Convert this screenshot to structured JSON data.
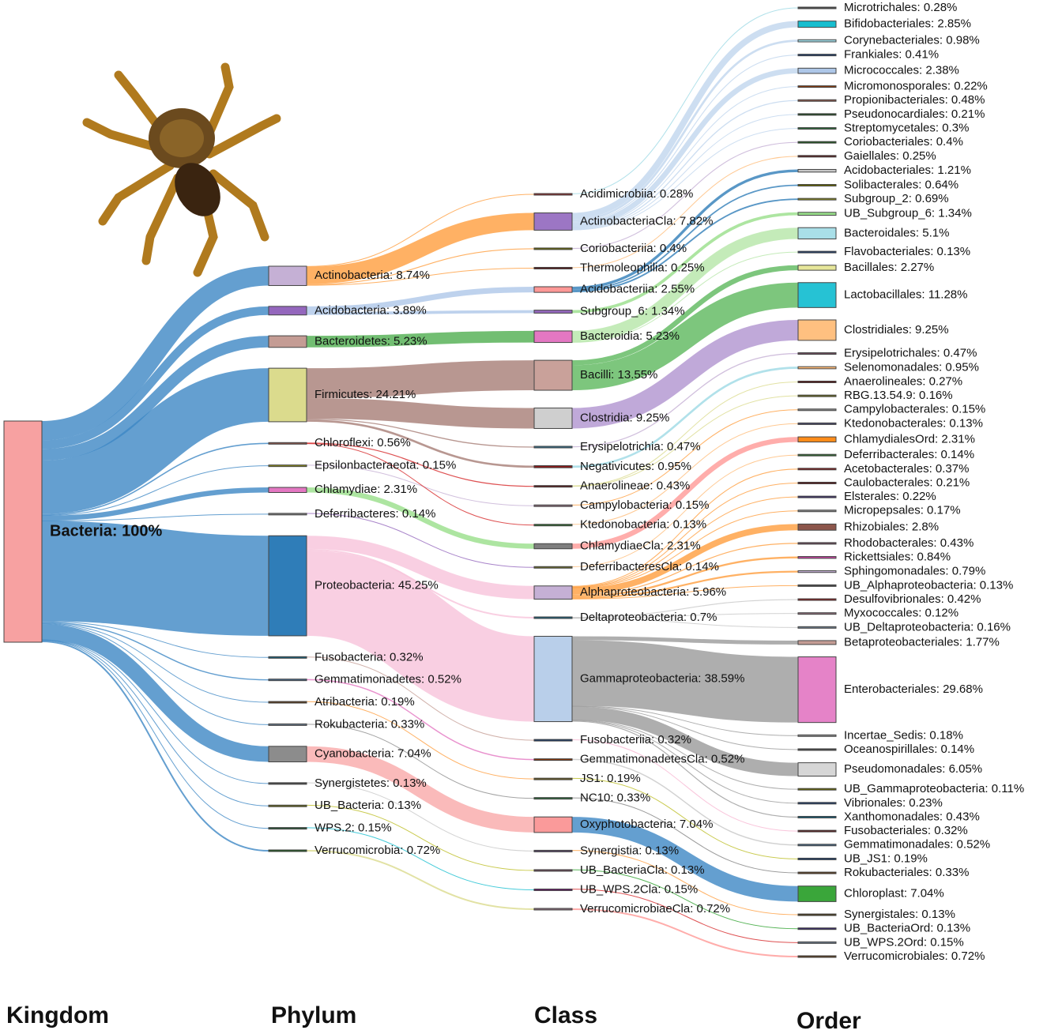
{
  "chart_data": {
    "type": "sankey",
    "columns": [
      {
        "title": "Kingdom",
        "nodes": [
          {
            "label": "Bacteria: 100%",
            "value": 100,
            "color": "#f7a1a1",
            "link_color": "#3d87c4"
          }
        ]
      },
      {
        "title": "Phylum",
        "nodes": [
          {
            "label": "Actinobacteria: 8.74%",
            "value": 8.74,
            "parent": 0,
            "color": "#c5b0d5",
            "link_color": "#ff9e3d"
          },
          {
            "label": "Acidobacteria: 3.89%",
            "value": 3.89,
            "parent": 0,
            "color": "#9467bd",
            "link_color": "#aec7e8"
          },
          {
            "label": "Bacteroidetes: 5.23%",
            "value": 5.23,
            "parent": 0,
            "color": "#c49c94",
            "link_color": "#4fae4f"
          },
          {
            "label": "Firmicutes: 24.21%",
            "value": 24.21,
            "parent": 0,
            "color": "#dbdb8d",
            "link_color": "#a67d76"
          },
          {
            "label": "Chloroflexi: 0.56%",
            "value": 0.56,
            "parent": 0,
            "color": "#8c564b",
            "link_color": "#d62728"
          },
          {
            "label": "Epsilonbacteraeota: 0.15%",
            "value": 0.15,
            "parent": 0,
            "color": "#8c8c1a",
            "link_color": "#c5b0d5"
          },
          {
            "label": "Chlamydiae: 2.31%",
            "value": 2.31,
            "parent": 0,
            "color": "#e377c2",
            "link_color": "#98df8a"
          },
          {
            "label": "Deferribacteres: 0.14%",
            "value": 0.14,
            "parent": 0,
            "color": "#7f7f7f",
            "link_color": "#9467bd"
          },
          {
            "label": "Proteobacteria: 45.25%",
            "value": 45.25,
            "parent": 0,
            "color": "#2f7db8",
            "link_color": "#f7c3db"
          },
          {
            "label": "Fusobacteria: 0.32%",
            "value": 0.32,
            "parent": 0,
            "color": "#17607a",
            "link_color": "#c49c94"
          },
          {
            "label": "Gemmatimonadetes: 0.52%",
            "value": 0.52,
            "parent": 0,
            "color": "#4a6a8a",
            "link_color": "#e377c2"
          },
          {
            "label": "Atribacteria: 0.19%",
            "value": 0.19,
            "parent": 0,
            "color": "#5a3a1a",
            "link_color": "#ff9e3d"
          },
          {
            "label": "Rokubacteria: 0.33%",
            "value": 0.33,
            "parent": 0,
            "color": "#6a7a8a",
            "link_color": "#8c8c8c"
          },
          {
            "label": "Cyanobacteria: 7.04%",
            "value": 7.04,
            "parent": 0,
            "color": "#8c8c8c",
            "link_color": "#f9a9a9"
          },
          {
            "label": "Synergistetes: 0.13%",
            "value": 0.13,
            "parent": 0,
            "color": "#4a4a4a",
            "link_color": "#c7c7c7"
          },
          {
            "label": "UB_Bacteria: 0.13%",
            "value": 0.13,
            "parent": 0,
            "color": "#6b6b1a",
            "link_color": "#bcbd22"
          },
          {
            "label": "WPS.2: 0.15%",
            "value": 0.15,
            "parent": 0,
            "color": "#2d5a3a",
            "link_color": "#17becf"
          },
          {
            "label": "Verrucomicrobia: 0.72%",
            "value": 0.72,
            "parent": 0,
            "color": "#1f5a1f",
            "link_color": "#dbdb8d"
          }
        ]
      },
      {
        "title": "Class",
        "nodes": [
          {
            "label": "Acidimicrobiia: 0.28%",
            "value": 0.28,
            "parent": 0,
            "color": "#8c2d2d",
            "link_color": "#9edae5"
          },
          {
            "label": "ActinobacteriaCla: 7.82%",
            "value": 7.82,
            "parent": 0,
            "color": "#9c76c4",
            "link_color": "#c0d6ee"
          },
          {
            "label": "Coriobacteriia: 0.4%",
            "value": 0.4,
            "parent": 0,
            "color": "#6b6b00",
            "link_color": "#c5b0d5"
          },
          {
            "label": "Thermoleophilia: 0.25%",
            "value": 0.25,
            "parent": 0,
            "color": "#5a1a1a",
            "link_color": "#ffbb78"
          },
          {
            "label": "Acidobacteriia: 2.55%",
            "value": 2.55,
            "parent": 1,
            "color": "#ff9896",
            "link_color": "#2f7db8"
          },
          {
            "label": "Subgroup_6: 1.34%",
            "value": 1.34,
            "parent": 1,
            "color": "#9467bd",
            "link_color": "#98df8a"
          },
          {
            "label": "Bacteroidia: 5.23%",
            "value": 5.23,
            "parent": 2,
            "color": "#e377c2",
            "link_color": "#b5e6a8"
          },
          {
            "label": "Bacilli: 13.55%",
            "value": 13.55,
            "parent": 3,
            "color": "#c9a19a",
            "link_color": "#5cb85c"
          },
          {
            "label": "Clostridia: 9.25%",
            "value": 9.25,
            "parent": 3,
            "color": "#cfcfcf",
            "link_color": "#b094d0"
          },
          {
            "label": "Erysipelotrichia: 0.47%",
            "value": 0.47,
            "parent": 3,
            "color": "#2f6f8f",
            "link_color": "#c5b0d5"
          },
          {
            "label": "Negativicutes: 0.95%",
            "value": 0.95,
            "parent": 3,
            "color": "#8b1a1a",
            "link_color": "#9edae5"
          },
          {
            "label": "Anaerolineae: 0.43%",
            "value": 0.43,
            "parent": 4,
            "color": "#5a1a1a",
            "link_color": "#dbdb8d"
          },
          {
            "label": "Campylobacteria: 0.15%",
            "value": 0.15,
            "parent": 5,
            "color": "#8c6d7a",
            "link_color": "#ff9e3d"
          },
          {
            "label": "Ktedonobacteria: 0.13%",
            "value": 0.13,
            "parent": 4,
            "color": "#2d6b2d",
            "link_color": "#ffbb78"
          },
          {
            "label": "ChlamydiaeCla: 2.31%",
            "value": 2.31,
            "parent": 6,
            "color": "#7f7f7f",
            "link_color": "#ff9896"
          },
          {
            "label": "DeferribacteresCla: 0.14%",
            "value": 0.14,
            "parent": 7,
            "color": "#6b6b2d",
            "link_color": "#ffbb78"
          },
          {
            "label": "Alphaproteobacteria: 5.96%",
            "value": 5.96,
            "parent": 8,
            "color": "#c5b0d5",
            "link_color": "#ff9e3d"
          },
          {
            "label": "Deltaproteobacteria: 0.7%",
            "value": 0.7,
            "parent": 8,
            "color": "#17607a",
            "link_color": "#c7c7c7"
          },
          {
            "label": "Gammaproteobacteria: 38.59%",
            "value": 38.59,
            "parent": 8,
            "color": "#b9cfea",
            "link_color": "#9a9a9a"
          },
          {
            "label": "Fusobacteriia: 0.32%",
            "value": 0.32,
            "parent": 9,
            "color": "#1a3a6b",
            "link_color": "#f7b6d2"
          },
          {
            "label": "GemmatimonadetesCla: 0.52%",
            "value": 0.52,
            "parent": 10,
            "color": "#8c3a0a",
            "link_color": "#c7c7c7"
          },
          {
            "label": "JS1: 0.19%",
            "value": 0.19,
            "parent": 11,
            "color": "#6b5a1a",
            "link_color": "#bcbd22"
          },
          {
            "label": "NC10: 0.33%",
            "value": 0.33,
            "parent": 12,
            "color": "#2d6b3a",
            "link_color": "#7f7f7f"
          },
          {
            "label": "Oxyphotobacteria: 7.04%",
            "value": 7.04,
            "parent": 13,
            "color": "#fa9a9a",
            "link_color": "#3d87c4"
          },
          {
            "label": "Synergistia: 0.13%",
            "value": 0.13,
            "parent": 14,
            "color": "#5a4a6b",
            "link_color": "#ff9e3d"
          },
          {
            "label": "UB_BacteriaCla: 0.13%",
            "value": 0.13,
            "parent": 15,
            "color": "#6b4a5a",
            "link_color": "#2ca02c"
          },
          {
            "label": "UB_WPS.2Cla: 0.15%",
            "value": 0.15,
            "parent": 16,
            "color": "#6b1a6b",
            "link_color": "#d62728"
          },
          {
            "label": "VerrucomicrobiaeCla: 0.72%",
            "value": 0.72,
            "parent": 17,
            "color": "#8c6d7a",
            "link_color": "#ff9896"
          }
        ]
      },
      {
        "title": "Order",
        "nodes": [
          {
            "label": "Microtrichales: 0.28%",
            "value": 0.28,
            "parent": 0,
            "color": "#4a4a4a"
          },
          {
            "label": "Bifidobacteriales: 2.85%",
            "value": 2.85,
            "parent": 1,
            "color": "#17becf"
          },
          {
            "label": "Corynebacteriales: 0.98%",
            "value": 0.98,
            "parent": 1,
            "color": "#9edae5"
          },
          {
            "label": "Frankiales: 0.41%",
            "value": 0.41,
            "parent": 1,
            "color": "#1a3a6b"
          },
          {
            "label": "Micrococcales: 2.38%",
            "value": 2.38,
            "parent": 1,
            "color": "#aec7e8"
          },
          {
            "label": "Micromonosporales: 0.22%",
            "value": 0.22,
            "parent": 1,
            "color": "#8c3a0a"
          },
          {
            "label": "Propionibacteriales: 0.48%",
            "value": 0.48,
            "parent": 1,
            "color": "#8c564b"
          },
          {
            "label": "Pseudonocardiales: 0.21%",
            "value": 0.21,
            "parent": 1,
            "color": "#1f4a1f"
          },
          {
            "label": "Streptomycetales: 0.3%",
            "value": 0.3,
            "parent": 1,
            "color": "#2d6b3a"
          },
          {
            "label": "Coriobacteriales: 0.4%",
            "value": 0.4,
            "parent": 2,
            "color": "#1f5a1f"
          },
          {
            "label": "Gaiellales: 0.25%",
            "value": 0.25,
            "parent": 3,
            "color": "#5a1a1a"
          },
          {
            "label": "Acidobacteriales: 1.21%",
            "value": 1.21,
            "parent": 4,
            "color": "#c7c7c7"
          },
          {
            "label": "Solibacterales: 0.64%",
            "value": 0.64,
            "parent": 4,
            "color": "#6b6b00"
          },
          {
            "label": "Subgroup_2: 0.69%",
            "value": 0.69,
            "parent": 4,
            "color": "#8c8c1a"
          },
          {
            "label": "UB_Subgroup_6: 1.34%",
            "value": 1.34,
            "parent": 5,
            "color": "#98df8a"
          },
          {
            "label": "Bacteroidales: 5.1%",
            "value": 5.1,
            "parent": 6,
            "color": "#a9dfe8"
          },
          {
            "label": "Flavobacteriales: 0.13%",
            "value": 0.13,
            "parent": 6,
            "color": "#1a3a6b"
          },
          {
            "label": "Bacillales: 2.27%",
            "value": 2.27,
            "parent": 7,
            "color": "#e6e69a"
          },
          {
            "label": "Lactobacillales: 11.28%",
            "value": 11.28,
            "parent": 7,
            "color": "#26c2d4"
          },
          {
            "label": "Clostridiales: 9.25%",
            "value": 9.25,
            "parent": 8,
            "color": "#ffc080"
          },
          {
            "label": "Erysipelotrichales: 0.47%",
            "value": 0.47,
            "parent": 9,
            "color": "#6b4a5a"
          },
          {
            "label": "Selenomonadales: 0.95%",
            "value": 0.95,
            "parent": 10,
            "color": "#ffbb78"
          },
          {
            "label": "Anaerolineales: 0.27%",
            "value": 0.27,
            "parent": 11,
            "color": "#5a1a1a"
          },
          {
            "label": "RBG.13.54.9: 0.16%",
            "value": 0.16,
            "parent": 11,
            "color": "#6b6b1a"
          },
          {
            "label": "Campylobacterales: 0.15%",
            "value": 0.15,
            "parent": 12,
            "color": "#8c8c8c"
          },
          {
            "label": "Ktedonobacterales: 0.13%",
            "value": 0.13,
            "parent": 13,
            "color": "#4a4a6b"
          },
          {
            "label": "ChlamydialesOrd: 2.31%",
            "value": 2.31,
            "parent": 14,
            "color": "#ff8c1a"
          },
          {
            "label": "Deferribacterales: 0.14%",
            "value": 0.14,
            "parent": 15,
            "color": "#2d6b2d"
          },
          {
            "label": "Acetobacterales: 0.37%",
            "value": 0.37,
            "parent": 16,
            "color": "#8b1a1a"
          },
          {
            "label": "Caulobacterales: 0.21%",
            "value": 0.21,
            "parent": 16,
            "color": "#5a1a1a"
          },
          {
            "label": "Elsterales: 0.22%",
            "value": 0.22,
            "parent": 16,
            "color": "#3a2a6b"
          },
          {
            "label": "Micropepsales: 0.17%",
            "value": 0.17,
            "parent": 16,
            "color": "#8c8c8c"
          },
          {
            "label": "Rhizobiales: 2.8%",
            "value": 2.8,
            "parent": 16,
            "color": "#8c564b"
          },
          {
            "label": "Rhodobacterales: 0.43%",
            "value": 0.43,
            "parent": 16,
            "color": "#6b4a5a"
          },
          {
            "label": "Rickettsiales: 0.84%",
            "value": 0.84,
            "parent": 16,
            "color": "#c445a0"
          },
          {
            "label": "Sphingomonadales: 0.79%",
            "value": 0.79,
            "parent": 16,
            "color": "#c5b0d5"
          },
          {
            "label": "UB_Alphaproteobacteria: 0.13%",
            "value": 0.13,
            "parent": 16,
            "color": "#4a4a4a"
          },
          {
            "label": "Desulfovibrionales: 0.42%",
            "value": 0.42,
            "parent": 17,
            "color": "#8b1a1a"
          },
          {
            "label": "Myxococcales: 0.12%",
            "value": 0.12,
            "parent": 17,
            "color": "#8c6d7a"
          },
          {
            "label": "UB_Deltaproteobacteria: 0.16%",
            "value": 0.16,
            "parent": 17,
            "color": "#6a7a8a"
          },
          {
            "label": "Betaproteobacteriales: 1.77%",
            "value": 1.77,
            "parent": 18,
            "color": "#c49c94"
          },
          {
            "label": "Enterobacteriales: 29.68%",
            "value": 29.68,
            "parent": 18,
            "color": "#e583c8"
          },
          {
            "label": "Incertae_Sedis: 0.18%",
            "value": 0.18,
            "parent": 18,
            "color": "#8c8c8c"
          },
          {
            "label": "Oceanospirillales: 0.14%",
            "value": 0.14,
            "parent": 18,
            "color": "#4a4a4a"
          },
          {
            "label": "Pseudomonadales: 6.05%",
            "value": 6.05,
            "parent": 18,
            "color": "#d6d6d6"
          },
          {
            "label": "UB_Gammaproteobacteria: 0.11%",
            "value": 0.11,
            "parent": 18,
            "color": "#6b6b00"
          },
          {
            "label": "Vibrionales: 0.23%",
            "value": 0.23,
            "parent": 18,
            "color": "#1a3a6b"
          },
          {
            "label": "Xanthomonadales: 0.43%",
            "value": 0.43,
            "parent": 18,
            "color": "#17607a"
          },
          {
            "label": "Fusobacteriales: 0.32%",
            "value": 0.32,
            "parent": 19,
            "color": "#5a1a1a"
          },
          {
            "label": "Gemmatimonadales: 0.52%",
            "value": 0.52,
            "parent": 20,
            "color": "#4a6a8a"
          },
          {
            "label": "UB_JS1: 0.19%",
            "value": 0.19,
            "parent": 21,
            "color": "#1a3a6b"
          },
          {
            "label": "Rokubacteriales: 0.33%",
            "value": 0.33,
            "parent": 22,
            "color": "#5a3a1a"
          },
          {
            "label": "Chloroplast: 7.04%",
            "value": 7.04,
            "parent": 23,
            "color": "#3aa63a"
          },
          {
            "label": "Synergistales: 0.13%",
            "value": 0.13,
            "parent": 24,
            "color": "#4a3a1a"
          },
          {
            "label": "UB_BacteriaOrd: 0.13%",
            "value": 0.13,
            "parent": 25,
            "color": "#3a2a6b"
          },
          {
            "label": "UB_WPS.2Ord: 0.15%",
            "value": 0.15,
            "parent": 26,
            "color": "#6a7a8a"
          },
          {
            "label": "Verrucomicrobiales: 0.72%",
            "value": 0.72,
            "parent": 27,
            "color": "#5a3a1a"
          }
        ]
      }
    ]
  }
}
